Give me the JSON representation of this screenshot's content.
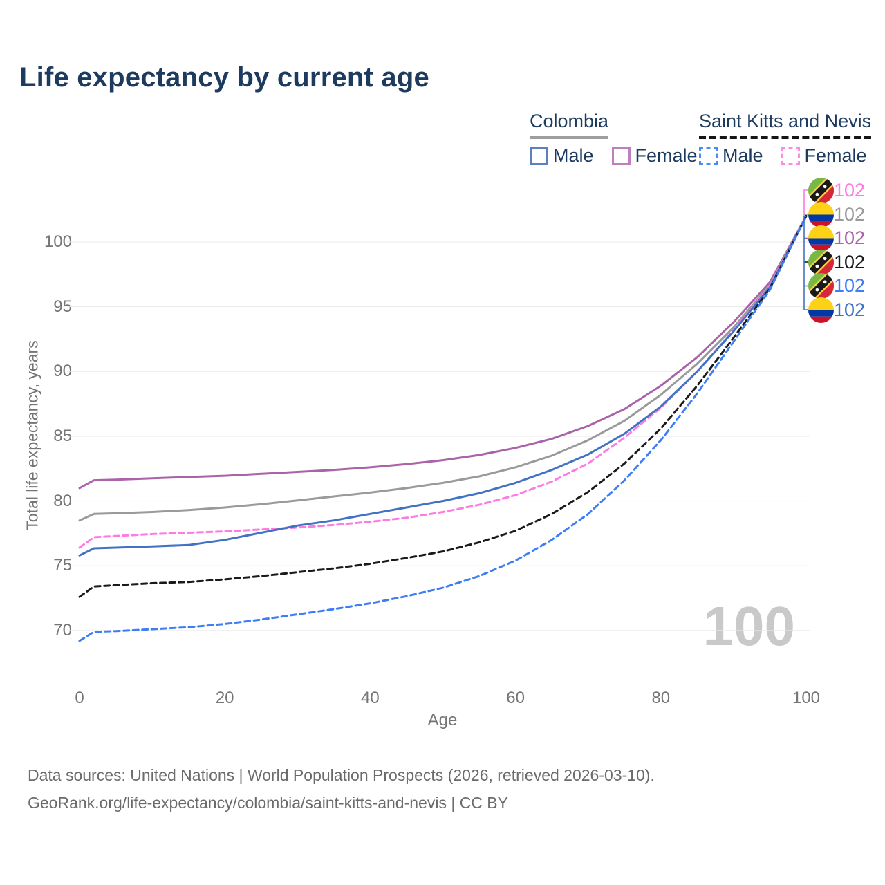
{
  "title": "Life expectancy by current age",
  "legend": {
    "groups": [
      {
        "country": "Colombia",
        "items": [
          {
            "label": "Male"
          },
          {
            "label": "Female"
          }
        ]
      },
      {
        "country": "Saint Kitts and Nevis",
        "items": [
          {
            "label": "Male"
          },
          {
            "label": "Female"
          }
        ]
      }
    ]
  },
  "watermark": "100",
  "footer": {
    "line1": "Data sources: United Nations | World Population Prospects (2026, retrieved 2026-03-10).",
    "line2": "GeoRank.org/life-expectancy/colombia/saint-kitts-and-nevis | CC BY"
  },
  "chart_data": {
    "type": "line",
    "title": "Life expectancy by current age",
    "xlabel": "Age",
    "ylabel": "Total life expectancy, years",
    "xlim": [
      0,
      100
    ],
    "ylim": [
      68.5,
      103
    ],
    "x_ticks": [
      0,
      20,
      40,
      60,
      80,
      100
    ],
    "y_ticks": [
      70,
      75,
      80,
      85,
      90,
      95,
      100
    ],
    "grid": "horizontal",
    "legend_position": "top-right",
    "x": [
      0,
      2,
      5,
      10,
      15,
      20,
      25,
      30,
      35,
      40,
      45,
      50,
      55,
      60,
      65,
      70,
      75,
      80,
      85,
      90,
      95,
      100
    ],
    "series": [
      {
        "name": "Saint Kitts and Nevis Female",
        "country": "Saint Kitts and Nevis",
        "sex": "Female",
        "color": "#ff7ae1",
        "dash": true,
        "flag": "skn",
        "end_label": "102",
        "rail_row": 0,
        "values": [
          76.4,
          77.2,
          77.3,
          77.45,
          77.55,
          77.65,
          77.8,
          77.95,
          78.15,
          78.4,
          78.7,
          79.15,
          79.7,
          80.45,
          81.5,
          82.9,
          84.9,
          87.2,
          90.0,
          93.2,
          96.6,
          102
        ]
      },
      {
        "name": "Colombia (both sexes)",
        "country": "Colombia",
        "sex": "Both",
        "color": "#9a9a9a",
        "dash": false,
        "flag": "colombia",
        "end_label": "102",
        "rail_row": 1,
        "values": [
          78.5,
          79.0,
          79.05,
          79.15,
          79.3,
          79.5,
          79.75,
          80.05,
          80.35,
          80.65,
          81.0,
          81.4,
          81.9,
          82.6,
          83.5,
          84.7,
          86.2,
          88.2,
          90.6,
          93.4,
          96.7,
          102
        ]
      },
      {
        "name": "Colombia Female",
        "country": "Colombia",
        "sex": "Female",
        "color": "#aa63a9",
        "dash": false,
        "flag": "colombia",
        "end_label": "102",
        "rail_row": 2,
        "values": [
          81.0,
          81.6,
          81.65,
          81.75,
          81.85,
          81.95,
          82.1,
          82.25,
          82.4,
          82.6,
          82.85,
          83.15,
          83.55,
          84.1,
          84.8,
          85.8,
          87.1,
          88.9,
          91.1,
          93.8,
          96.9,
          102
        ]
      },
      {
        "name": "Saint Kitts and Nevis (both sexes)",
        "country": "Saint Kitts and Nevis",
        "sex": "Both",
        "color": "#1a1a1a",
        "dash": true,
        "flag": "skn",
        "end_label": "102",
        "rail_row": 3,
        "values": [
          72.6,
          73.4,
          73.5,
          73.65,
          73.75,
          73.95,
          74.2,
          74.5,
          74.8,
          75.15,
          75.6,
          76.1,
          76.8,
          77.7,
          79.0,
          80.7,
          82.9,
          85.6,
          88.9,
          92.6,
          96.4,
          102
        ]
      },
      {
        "name": "Saint Kitts and Nevis Male",
        "country": "Saint Kitts and Nevis",
        "sex": "Male",
        "color": "#3d7df5",
        "dash": true,
        "flag": "skn",
        "end_label": "102",
        "rail_row": 4,
        "values": [
          69.2,
          69.9,
          69.95,
          70.1,
          70.25,
          70.5,
          70.85,
          71.25,
          71.65,
          72.1,
          72.65,
          73.3,
          74.2,
          75.4,
          77.0,
          79.0,
          81.6,
          84.7,
          88.3,
          92.3,
          96.3,
          102
        ]
      },
      {
        "name": "Colombia Male",
        "country": "Colombia",
        "sex": "Male",
        "color": "#4272c4",
        "dash": false,
        "flag": "colombia",
        "end_label": "102",
        "rail_row": 5,
        "values": [
          75.8,
          76.35,
          76.4,
          76.5,
          76.6,
          77.0,
          77.55,
          78.1,
          78.5,
          79.0,
          79.5,
          80.0,
          80.6,
          81.4,
          82.4,
          83.6,
          85.2,
          87.3,
          90.0,
          93.1,
          96.5,
          102
        ]
      }
    ],
    "colors": {
      "colombia_male": "#4272c4",
      "colombia_female": "#aa63a9",
      "colombia_both": "#9a9a9a",
      "skn_male": "#3d7df5",
      "skn_female": "#ff7ae1",
      "skn_both": "#1a1a1a",
      "gridline": "#e8e8e8",
      "axis_text": "#757575",
      "title_text": "#1d3a5f",
      "watermark": "#c9c9c9"
    },
    "flag_colors": {
      "colombia_yellow": "#fcd116",
      "colombia_blue": "#0038a8",
      "colombia_red": "#ce1126",
      "skn_green": "#78b843",
      "skn_red": "#d62839",
      "skn_black": "#1a1a1a",
      "skn_yellow": "#ffd23f"
    }
  }
}
